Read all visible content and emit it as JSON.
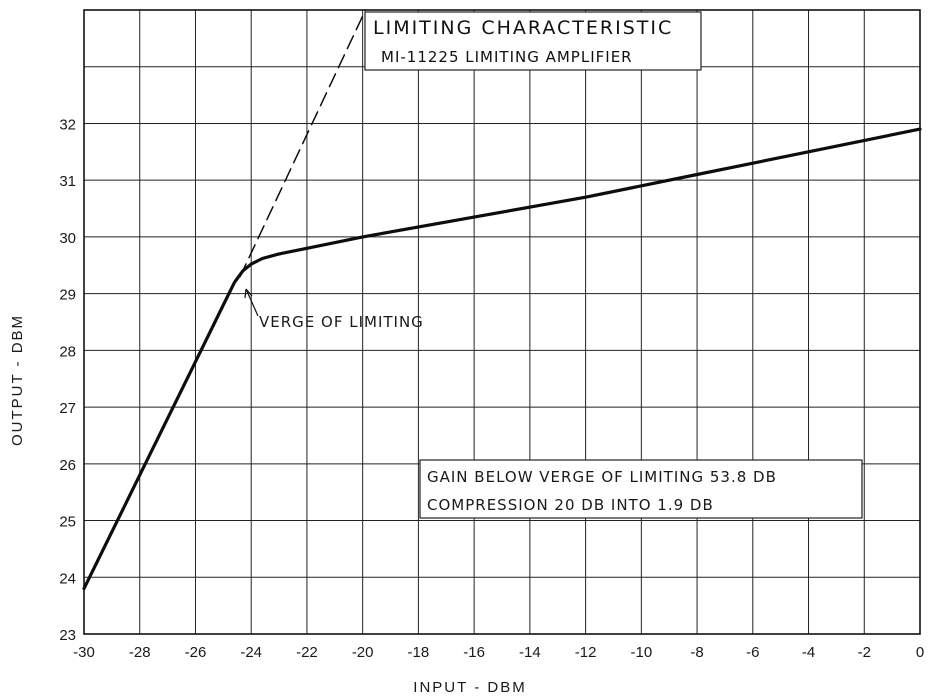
{
  "chart_data": {
    "type": "line",
    "title": "LIMITING CHARACTERISTIC",
    "subtitle": "MI-11225 LIMITING AMPLIFIER",
    "xlabel": "INPUT - DBM",
    "ylabel": "OUTPUT - DBM",
    "xlim": [
      -30,
      0
    ],
    "ylim": [
      23,
      34
    ],
    "grid": true,
    "x_ticks": [
      "-30",
      "-28",
      "-26",
      "-24",
      "-22",
      "-20",
      "-18",
      "-16",
      "-14",
      "-12",
      "-10",
      "-8",
      "-6",
      "-4",
      "-2",
      "0"
    ],
    "y_ticks": [
      "23",
      "24",
      "25",
      "26",
      "27",
      "28",
      "29",
      "30",
      "31",
      "32"
    ],
    "series": [
      {
        "style": "solid",
        "x": [
          -30,
          -28,
          -26,
          -25,
          -24.6,
          -24.3,
          -24.0,
          -23.6,
          -23.0,
          -22.0,
          -20.0,
          -16.0,
          -12.0,
          -8.0,
          -4.0,
          0.0
        ],
        "y": [
          23.8,
          25.8,
          27.8,
          28.8,
          29.2,
          29.4,
          29.52,
          29.62,
          29.7,
          29.8,
          30.0,
          30.35,
          30.7,
          31.1,
          31.5,
          31.9
        ]
      },
      {
        "style": "dashed",
        "x": [
          -24.4,
          -19.9
        ],
        "y": [
          29.3,
          34.0
        ]
      }
    ],
    "annotations": {
      "verge": "VERGE OF LIMITING",
      "gain": "GAIN BELOW VERGE OF LIMITING 53.8 DB",
      "compression": "COMPRESSION  20 DB  INTO  1.9 DB"
    }
  }
}
